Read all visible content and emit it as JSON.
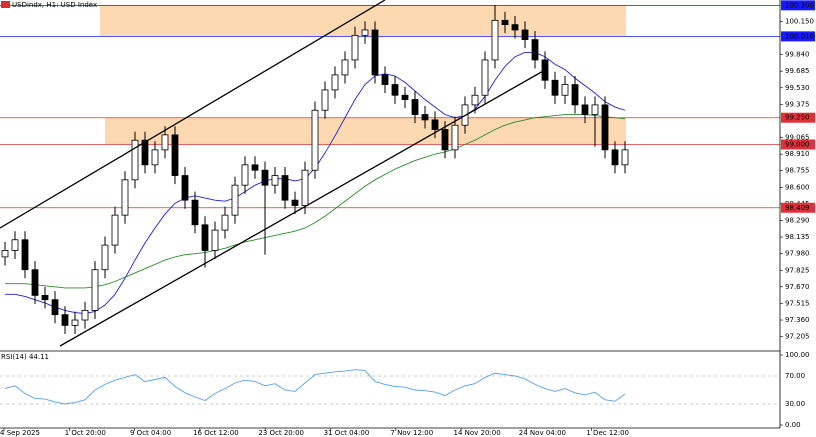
{
  "chart_data": {
    "type": "candlestick",
    "title": "USDindx, H1: USD Index",
    "color": "#000000",
    "open": [
      97.95,
      98.01,
      98.11,
      97.83,
      97.59,
      97.55,
      97.41,
      97.31,
      97.36,
      97.45,
      97.83,
      98.06,
      98.34,
      98.67,
      99.04,
      98.81,
      98.95,
      99.09,
      98.71,
      98.48,
      98.25,
      98.01,
      98.2,
      98.34,
      98.62,
      98.81,
      98.76,
      98.62,
      98.71,
      98.48,
      98.43,
      98.76,
      99.32,
      99.51,
      99.65,
      99.79,
      100.02,
      100.07,
      99.65,
      99.56,
      99.46,
      99.42,
      99.28,
      99.23,
      99.14,
      98.95,
      99.18,
      99.37,
      99.46,
      99.79,
      100.16,
      100.12,
      100.07,
      99.98,
      99.79,
      99.6,
      99.46,
      99.56,
      99.37,
      99.28,
      99.37,
      98.95,
      98.81
    ],
    "high": [
      98.09,
      98.19,
      98.19,
      97.91,
      97.67,
      97.63,
      97.49,
      97.44,
      97.53,
      97.91,
      98.14,
      98.42,
      98.75,
      99.12,
      99.12,
      99.03,
      99.17,
      99.17,
      98.79,
      98.56,
      98.33,
      98.28,
      98.42,
      98.7,
      98.89,
      98.89,
      98.84,
      98.79,
      98.79,
      98.56,
      98.84,
      99.4,
      99.59,
      99.73,
      99.87,
      100.1,
      100.15,
      100.15,
      99.73,
      99.64,
      99.54,
      99.5,
      99.36,
      99.31,
      99.22,
      99.26,
      99.45,
      99.54,
      99.87,
      100.3,
      100.24,
      100.2,
      100.15,
      100.06,
      99.87,
      99.68,
      99.64,
      99.64,
      99.45,
      99.45,
      99.45,
      99.03,
      99.03
    ],
    "low": [
      97.87,
      97.93,
      97.75,
      97.51,
      97.47,
      97.33,
      97.23,
      97.23,
      97.28,
      97.37,
      97.75,
      97.98,
      98.26,
      98.59,
      98.73,
      98.73,
      98.87,
      98.63,
      98.4,
      98.17,
      97.85,
      97.93,
      98.12,
      98.26,
      98.54,
      98.68,
      97.97,
      98.54,
      98.4,
      98.35,
      98.35,
      98.68,
      99.24,
      99.43,
      99.57,
      99.71,
      99.94,
      99.57,
      99.48,
      99.38,
      99.34,
      99.2,
      99.15,
      99.06,
      98.87,
      98.87,
      99.1,
      99.29,
      99.38,
      99.71,
      100.04,
      99.99,
      99.9,
      99.71,
      99.52,
      99.38,
      99.38,
      99.29,
      99.2,
      98.98,
      98.87,
      98.73,
      98.73
    ],
    "close": [
      98.01,
      98.11,
      97.83,
      97.59,
      97.55,
      97.41,
      97.31,
      97.36,
      97.45,
      97.83,
      98.06,
      98.34,
      98.67,
      99.04,
      98.81,
      98.95,
      99.09,
      98.71,
      98.48,
      98.25,
      98.01,
      98.2,
      98.34,
      98.62,
      98.81,
      98.76,
      98.62,
      98.71,
      98.48,
      98.43,
      98.76,
      99.32,
      99.51,
      99.65,
      99.79,
      100.02,
      100.07,
      99.65,
      99.56,
      99.46,
      99.42,
      99.28,
      99.23,
      99.14,
      98.95,
      99.18,
      99.37,
      99.46,
      99.79,
      100.16,
      100.12,
      100.07,
      99.98,
      99.79,
      99.6,
      99.46,
      99.56,
      99.37,
      99.28,
      99.37,
      98.95,
      98.81,
      98.95
    ],
    "overlays": [
      {
        "color": "#2e8b2e",
        "values": [
          97.7,
          97.7,
          97.7,
          97.69,
          97.68,
          97.67,
          97.66,
          97.66,
          97.66,
          97.67,
          97.69,
          97.72,
          97.76,
          97.8,
          97.84,
          97.88,
          97.92,
          97.95,
          97.97,
          97.98,
          97.99,
          98.01,
          98.03,
          98.06,
          98.09,
          98.11,
          98.13,
          98.15,
          98.17,
          98.19,
          98.22,
          98.27,
          98.33,
          98.4,
          98.47,
          98.54,
          98.61,
          98.67,
          98.72,
          98.77,
          98.81,
          98.85,
          98.88,
          98.91,
          98.93,
          98.96,
          99.0,
          99.04,
          99.09,
          99.14,
          99.18,
          99.21,
          99.23,
          99.25,
          99.26,
          99.27,
          99.28,
          99.28,
          99.28,
          99.27,
          99.26,
          99.25,
          99.24
        ]
      },
      {
        "color": "#2020d0",
        "values": [
          97.6,
          97.6,
          97.58,
          97.55,
          97.52,
          97.48,
          97.45,
          97.43,
          97.42,
          97.44,
          97.5,
          97.6,
          97.75,
          97.92,
          98.08,
          98.22,
          98.35,
          98.45,
          98.5,
          98.52,
          98.5,
          98.48,
          98.47,
          98.5,
          98.56,
          98.62,
          98.66,
          98.68,
          98.68,
          98.66,
          98.68,
          98.78,
          98.92,
          99.08,
          99.25,
          99.42,
          99.56,
          99.64,
          99.66,
          99.64,
          99.58,
          99.5,
          99.42,
          99.35,
          99.28,
          99.25,
          99.27,
          99.33,
          99.45,
          99.6,
          99.73,
          99.82,
          99.86,
          99.86,
          99.82,
          99.75,
          99.7,
          99.62,
          99.55,
          99.48,
          99.4,
          99.35,
          99.32
        ]
      }
    ],
    "ylim": [
      97.08,
      100.35
    ],
    "yticks": [
      {
        "value": 100.15,
        "label": "100.150"
      },
      {
        "value": 99.84,
        "label": "99.840"
      },
      {
        "value": 99.685,
        "label": "99.685"
      },
      {
        "value": 99.53,
        "label": "99.530"
      },
      {
        "value": 99.375,
        "label": "99.375"
      },
      {
        "value": 99.065,
        "label": "99.065"
      },
      {
        "value": 98.91,
        "label": "98.910"
      },
      {
        "value": 98.755,
        "label": "98.755"
      },
      {
        "value": 98.6,
        "label": "98.600"
      },
      {
        "value": 98.445,
        "label": "98.445"
      },
      {
        "value": 98.29,
        "label": "98.290"
      },
      {
        "value": 98.135,
        "label": "98.135"
      },
      {
        "value": 97.98,
        "label": "97.980"
      },
      {
        "value": 97.825,
        "label": "97.825"
      },
      {
        "value": 97.67,
        "label": "97.670"
      },
      {
        "value": 97.515,
        "label": "97.515"
      },
      {
        "value": 97.36,
        "label": "97.360"
      },
      {
        "value": 97.205,
        "label": "97.205"
      }
    ],
    "levels": [
      {
        "value": 100.3,
        "label": "100.300",
        "color": "#1a1aff"
      },
      {
        "value": 100.01,
        "label": "100.010",
        "color": "#1a1aff"
      },
      {
        "value": 99.25,
        "label": "99.250",
        "color": "#e0303a"
      },
      {
        "value": 99.0,
        "label": "99.000",
        "color": "#e0303a"
      },
      {
        "value": 98.409,
        "label": "98.409",
        "color": "#e0303a"
      }
    ],
    "zone_color": "#fcd9b0",
    "x_labels": [
      "4 Sep 2025",
      "1 Oct 20:00",
      "9 Oct 04:00",
      "16 Oct 12:00",
      "23 Oct 20:00",
      "31 Oct 04:00",
      "7 Nov 12:00",
      "14 Nov 20:00",
      "24 Nov 04:00",
      "1 Dec 12:00"
    ],
    "rsi": {
      "label": "RSI(14) 44.11",
      "color": "#5aa0e6",
      "values": [
        52,
        56,
        45,
        38,
        37,
        33,
        30,
        32,
        36,
        50,
        58,
        64,
        68,
        72,
        62,
        65,
        68,
        55,
        46,
        40,
        35,
        45,
        52,
        60,
        64,
        62,
        56,
        59,
        50,
        48,
        60,
        72,
        74,
        76,
        77,
        79,
        78,
        62,
        58,
        55,
        54,
        50,
        49,
        47,
        42,
        50,
        56,
        59,
        68,
        74,
        72,
        70,
        66,
        58,
        52,
        48,
        52,
        46,
        43,
        47,
        36,
        34,
        44.11
      ],
      "ylim": [
        0,
        100
      ],
      "yticks": [
        {
          "value": 100,
          "label": "100.00"
        },
        {
          "value": 70,
          "label": "70.00"
        },
        {
          "value": 30,
          "label": "30.00"
        },
        {
          "value": 0,
          "label": "0.00"
        }
      ]
    }
  }
}
